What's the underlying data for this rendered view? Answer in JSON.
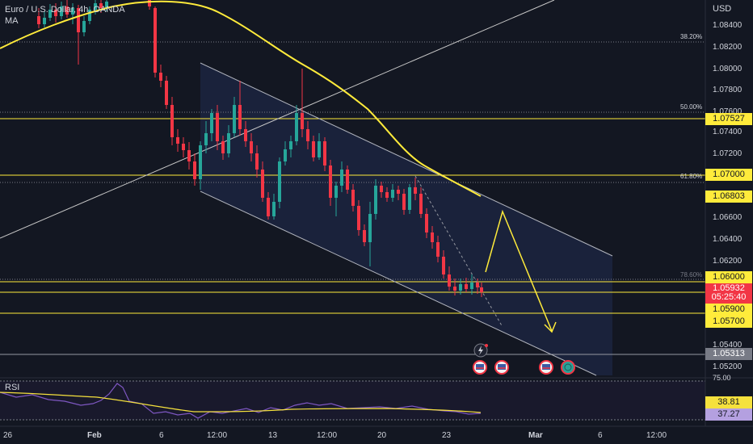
{
  "legend": {
    "symbol": "Euro / U.S. Dollar, 4h, OANDA",
    "indicator": "MA"
  },
  "axis": {
    "currency": "USD",
    "price_ticks": [
      "1.08400",
      "1.08200",
      "1.08000",
      "1.07800",
      "1.07600",
      "1.07400",
      "1.07200",
      "1.06600",
      "1.06400",
      "1.06200",
      "1.05400",
      "1.05200"
    ],
    "rsi_tick": "75.00",
    "time_ticks": [
      "26",
      "Feb",
      "6",
      "12:00",
      "13",
      "12:00",
      "20",
      "23",
      "Mar",
      "6",
      "12:00"
    ]
  },
  "fib_labels": [
    "38.20%",
    "50.00%",
    "61.80%",
    "78.60%"
  ],
  "price_tags": {
    "t1": "1.07527",
    "t2": "1.07000",
    "t3": "1.06803",
    "t4": "1.06000",
    "last_price": "1.05932",
    "countdown": "05:25:40",
    "t5": "1.05900",
    "t6": "1.05700",
    "t7": "1.05313"
  },
  "rsi": {
    "title": "RSI",
    "ma_value": "38.81",
    "value": "37.27"
  },
  "colors": {
    "background": "#131722",
    "bull": "#26a69a",
    "bear": "#f23645",
    "ma": "#ffeb3b",
    "channel": "#b2b5be",
    "rsi_line": "#7e57c2",
    "rsi_ma": "#f5e13d"
  }
}
